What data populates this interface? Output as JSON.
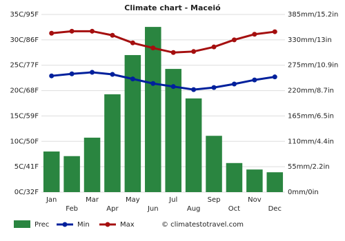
{
  "chart_data": {
    "type": "bar",
    "title": "Climate chart - Maceió",
    "categories": [
      "Jan",
      "Feb",
      "Mar",
      "Apr",
      "May",
      "Jun",
      "Jul",
      "Aug",
      "Sep",
      "Oct",
      "Nov",
      "Dec"
    ],
    "series": [
      {
        "name": "Prec",
        "type": "bar",
        "axis": "y2",
        "color": "#2a8540",
        "values": [
          88,
          78,
          118,
          212,
          297,
          358,
          267,
          203,
          122,
          63,
          49,
          43
        ]
      },
      {
        "name": "Min",
        "type": "line",
        "color": "#00209c",
        "values": [
          22.9,
          23.3,
          23.6,
          23.2,
          22.3,
          21.4,
          20.8,
          20.2,
          20.6,
          21.3,
          22.1,
          22.7
        ]
      },
      {
        "name": "Max",
        "type": "line",
        "color": "#a50f0f",
        "values": [
          31.3,
          31.7,
          31.7,
          30.9,
          29.4,
          28.4,
          27.5,
          27.7,
          28.6,
          30.0,
          31.1,
          31.6
        ]
      }
    ],
    "ylim": [
      0,
      35
    ],
    "yticks": [
      {
        "value": 0,
        "label": "0C/32F"
      },
      {
        "value": 5,
        "label": "5C/41F"
      },
      {
        "value": 10,
        "label": "10C/50F"
      },
      {
        "value": 15,
        "label": "15C/59F"
      },
      {
        "value": 20,
        "label": "20C/68F"
      },
      {
        "value": 25,
        "label": "25C/77F"
      },
      {
        "value": 30,
        "label": "30C/86F"
      },
      {
        "value": 35,
        "label": "35C/95F"
      }
    ],
    "y2lim": [
      0,
      385
    ],
    "y2ticks": [
      {
        "value": 0,
        "label": "0mm/0in"
      },
      {
        "value": 55,
        "label": "55mm/2.2in"
      },
      {
        "value": 110,
        "label": "110mm/4.4in"
      },
      {
        "value": 165,
        "label": "165mm/6.5in"
      },
      {
        "value": 220,
        "label": "220mm/8.7in"
      },
      {
        "value": 275,
        "label": "275mm/10.9in"
      },
      {
        "value": 330,
        "label": "330mm/13in"
      },
      {
        "value": 385,
        "label": "385mm/15.2in"
      }
    ],
    "grid": true,
    "legend": "bottom-left",
    "watermark": "© climatestotravel.com"
  }
}
